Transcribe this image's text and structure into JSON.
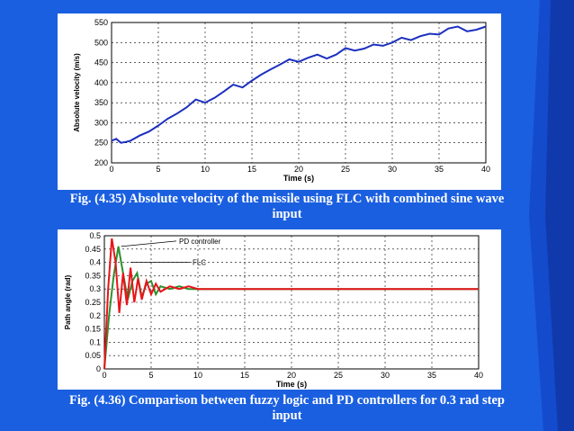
{
  "colors": {
    "background": "#1a5fe0",
    "chart1_line": "#1c2fbf",
    "flc_line": "#e8141a",
    "pd_line": "#2f8f2f"
  },
  "captions": {
    "fig435_line1": "Fig. (4.35) Absolute velocity of the missile using FLC with combined sine wave",
    "fig435_line2": "input",
    "fig436_line1": "Fig. (4.36) Comparison between fuzzy logic and PD controllers for 0.3 rad step",
    "fig436_line2": "input"
  },
  "chart_data": [
    {
      "type": "line",
      "title": "",
      "xlabel": "Time (s)",
      "ylabel": "Absolute velocity (m/s)",
      "xlim": [
        0,
        40
      ],
      "ylim": [
        200,
        550
      ],
      "xticks": [
        0,
        5,
        10,
        15,
        20,
        25,
        30,
        35,
        40
      ],
      "yticks": [
        200,
        250,
        300,
        350,
        400,
        450,
        500,
        550
      ],
      "grid": true,
      "series": [
        {
          "x": [
            0,
            0.5,
            1,
            1.5,
            2,
            3,
            4,
            5,
            6,
            7,
            8,
            9,
            10,
            11,
            12,
            13,
            14,
            15,
            16,
            17,
            18,
            19,
            20,
            21,
            22,
            23,
            24,
            25,
            26,
            27,
            28,
            29,
            30,
            31,
            32,
            33,
            34,
            35,
            36,
            37,
            38,
            39,
            40
          ],
          "y": [
            255,
            260,
            250,
            252,
            255,
            268,
            278,
            293,
            310,
            323,
            338,
            358,
            350,
            362,
            378,
            395,
            388,
            405,
            420,
            433,
            445,
            458,
            452,
            462,
            470,
            460,
            470,
            486,
            480,
            485,
            495,
            492,
            500,
            512,
            506,
            516,
            522,
            520,
            535,
            540,
            528,
            532,
            540
          ]
        }
      ]
    },
    {
      "type": "line",
      "title": "",
      "xlabel": "Time (s)",
      "ylabel": "Path angle (rad)",
      "xlim": [
        0,
        40
      ],
      "ylim": [
        0,
        0.5
      ],
      "xticks": [
        0,
        5,
        10,
        15,
        20,
        25,
        30,
        35,
        40
      ],
      "yticks": [
        0,
        0.05,
        0.1,
        0.15,
        0.2,
        0.25,
        0.3,
        0.35,
        0.4,
        0.45,
        0.5
      ],
      "grid": true,
      "annotations": [
        "PD controller",
        "FLC"
      ],
      "series": [
        {
          "name": "PD controller",
          "x": [
            0,
            0.5,
            1,
            1.5,
            2,
            2.5,
            3,
            3.5,
            4,
            4.5,
            5,
            5.5,
            6,
            7,
            8,
            9,
            10,
            40
          ],
          "y": [
            0,
            0.2,
            0.35,
            0.46,
            0.36,
            0.26,
            0.33,
            0.36,
            0.27,
            0.32,
            0.33,
            0.28,
            0.31,
            0.3,
            0.31,
            0.3,
            0.3,
            0.3
          ]
        },
        {
          "name": "FLC",
          "x": [
            0,
            0.4,
            0.8,
            1.2,
            1.6,
            2,
            2.4,
            2.8,
            3.2,
            3.6,
            4,
            4.5,
            5,
            5.5,
            6,
            7,
            8,
            9,
            10,
            40
          ],
          "y": [
            0,
            0.3,
            0.49,
            0.4,
            0.21,
            0.36,
            0.24,
            0.38,
            0.25,
            0.34,
            0.26,
            0.33,
            0.28,
            0.32,
            0.29,
            0.31,
            0.3,
            0.31,
            0.3,
            0.3
          ]
        }
      ]
    }
  ]
}
